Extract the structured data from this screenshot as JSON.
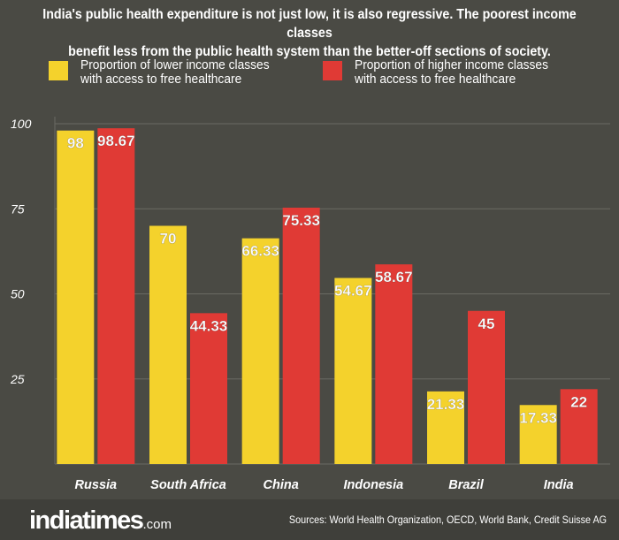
{
  "header": {
    "title": "India's public health expenditure is not just low, it is also regressive. The poorest income classes\nbenefit less from the public health system than the better-off sections of society."
  },
  "colors": {
    "lower": "#f4d22c",
    "higher": "#e03a35"
  },
  "chart_data": {
    "type": "bar",
    "categories": [
      "Russia",
      "South Africa",
      "China",
      "Indonesia",
      "Brazil",
      "India"
    ],
    "series": [
      {
        "name": "Proportion of lower income classes\nwith access to free healthcare",
        "values": [
          98,
          70,
          66.33,
          54.67,
          21.33,
          17.33
        ],
        "labels": [
          "98",
          "70",
          "66.33",
          "54.67",
          "21.33",
          "17.33"
        ]
      },
      {
        "name": "Proportion of higher income classes\nwith access to free healthcare",
        "values": [
          98.67,
          44.33,
          75.33,
          58.67,
          45,
          22
        ],
        "labels": [
          "98.67",
          "44.33",
          "75.33",
          "58.67",
          "45",
          "22"
        ]
      }
    ],
    "yticks": [
      "100",
      "75",
      "50",
      "25"
    ],
    "ylim": [
      0,
      100
    ],
    "grid": true,
    "legend": "top"
  },
  "footer": {
    "logo_main": "indiatimes",
    "logo_suffix": ".com",
    "sources": "Sources: World Health Organization, OECD, World Bank, Credit Suisse AG"
  }
}
